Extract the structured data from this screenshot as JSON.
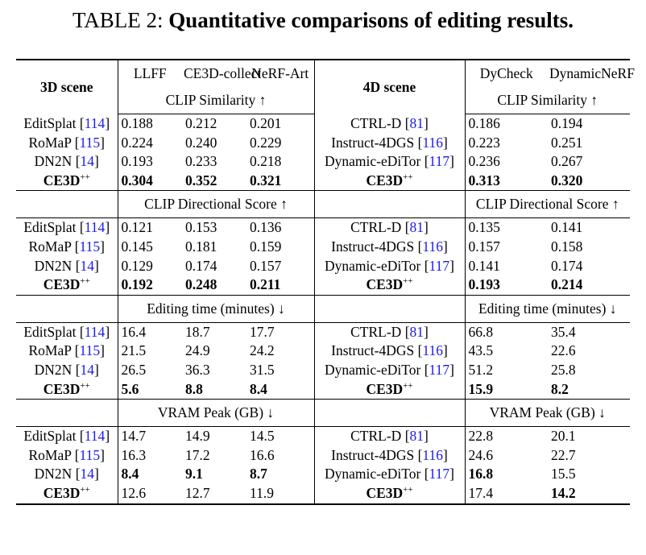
{
  "title": {
    "label": "TABLE 2:",
    "text": "Quantitative comparisons of editing results."
  },
  "header": {
    "left_scene": "3D scene",
    "left_datasets": [
      "LLFF",
      "CE3D-collect",
      "NeRF-Art"
    ],
    "right_scene": "4D scene",
    "right_datasets": [
      "DyCheck",
      "DynamicNeRF"
    ]
  },
  "sections": [
    {
      "metric": "CLIP Similarity ↑",
      "rows": [
        {
          "left_method": "EditSplat",
          "left_ref": "[114]",
          "left_values": [
            "0.188",
            "0.212",
            "0.201"
          ],
          "left_bold": [
            false,
            false,
            false
          ],
          "right_method": "CTRL-D",
          "right_ref": "[81]",
          "right_values": [
            "0.186",
            "0.194"
          ],
          "right_bold": [
            false,
            false
          ]
        },
        {
          "left_method": "RoMaP",
          "left_ref": "[115]",
          "left_values": [
            "0.224",
            "0.240",
            "0.229"
          ],
          "left_bold": [
            false,
            false,
            false
          ],
          "right_method": "Instruct-4DGS",
          "right_ref": "[116]",
          "right_values": [
            "0.223",
            "0.251"
          ],
          "right_bold": [
            false,
            false
          ]
        },
        {
          "left_method": "DN2N",
          "left_ref": "[14]",
          "left_values": [
            "0.193",
            "0.233",
            "0.218"
          ],
          "left_bold": [
            false,
            false,
            false
          ],
          "right_method": "Dynamic-eDiTor",
          "right_ref": "[117]",
          "right_values": [
            "0.236",
            "0.267"
          ],
          "right_bold": [
            false,
            false
          ]
        },
        {
          "left_method": "CE3D",
          "left_sup": "++",
          "left_values": [
            "0.304",
            "0.352",
            "0.321"
          ],
          "left_bold": [
            true,
            true,
            true
          ],
          "right_method": "CE3D",
          "right_sup": "++",
          "right_values": [
            "0.313",
            "0.320"
          ],
          "right_bold": [
            true,
            true
          ]
        }
      ]
    },
    {
      "metric": "CLIP Directional Score ↑",
      "rows": [
        {
          "left_method": "EditSplat",
          "left_ref": "[114]",
          "left_values": [
            "0.121",
            "0.153",
            "0.136"
          ],
          "left_bold": [
            false,
            false,
            false
          ],
          "right_method": "CTRL-D",
          "right_ref": "[81]",
          "right_values": [
            "0.135",
            "0.141"
          ],
          "right_bold": [
            false,
            false
          ]
        },
        {
          "left_method": "RoMaP",
          "left_ref": "[115]",
          "left_values": [
            "0.145",
            "0.181",
            "0.159"
          ],
          "left_bold": [
            false,
            false,
            false
          ],
          "right_method": "Instruct-4DGS",
          "right_ref": "[116]",
          "right_values": [
            "0.157",
            "0.158"
          ],
          "right_bold": [
            false,
            false
          ]
        },
        {
          "left_method": "DN2N",
          "left_ref": "[14]",
          "left_values": [
            "0.129",
            "0.174",
            "0.157"
          ],
          "left_bold": [
            false,
            false,
            false
          ],
          "right_method": "Dynamic-eDiTor",
          "right_ref": "[117]",
          "right_values": [
            "0.141",
            "0.174"
          ],
          "right_bold": [
            false,
            false
          ]
        },
        {
          "left_method": "CE3D",
          "left_sup": "++",
          "left_values": [
            "0.192",
            "0.248",
            "0.211"
          ],
          "left_bold": [
            true,
            true,
            true
          ],
          "right_method": "CE3D",
          "right_sup": "++",
          "right_values": [
            "0.193",
            "0.214"
          ],
          "right_bold": [
            true,
            true
          ]
        }
      ]
    },
    {
      "metric": "Editing time (minutes) ↓",
      "rows": [
        {
          "left_method": "EditSplat",
          "left_ref": "[114]",
          "left_values": [
            "16.4",
            "18.7",
            "17.7"
          ],
          "left_bold": [
            false,
            false,
            false
          ],
          "right_method": "CTRL-D",
          "right_ref": "[81]",
          "right_values": [
            "66.8",
            "35.4"
          ],
          "right_bold": [
            false,
            false
          ]
        },
        {
          "left_method": "RoMaP",
          "left_ref": "[115]",
          "left_values": [
            "21.5",
            "24.9",
            "24.2"
          ],
          "left_bold": [
            false,
            false,
            false
          ],
          "right_method": "Instruct-4DGS",
          "right_ref": "[116]",
          "right_values": [
            "43.5",
            "22.6"
          ],
          "right_bold": [
            false,
            false
          ]
        },
        {
          "left_method": "DN2N",
          "left_ref": "[14]",
          "left_values": [
            "26.5",
            "36.3",
            "31.5"
          ],
          "left_bold": [
            false,
            false,
            false
          ],
          "right_method": "Dynamic-eDiTor",
          "right_ref": "[117]",
          "right_values": [
            "51.2",
            "25.8"
          ],
          "right_bold": [
            false,
            false
          ]
        },
        {
          "left_method": "CE3D",
          "left_sup": "++",
          "left_values": [
            "5.6",
            "8.8",
            "8.4"
          ],
          "left_bold": [
            true,
            true,
            true
          ],
          "right_method": "CE3D",
          "right_sup": "++",
          "right_values": [
            "15.9",
            "8.2"
          ],
          "right_bold": [
            true,
            true
          ]
        }
      ]
    },
    {
      "metric": "VRAM Peak (GB) ↓",
      "rows": [
        {
          "left_method": "EditSplat",
          "left_ref": "[114]",
          "left_values": [
            "14.7",
            "14.9",
            "14.5"
          ],
          "left_bold": [
            false,
            false,
            false
          ],
          "right_method": "CTRL-D",
          "right_ref": "[81]",
          "right_values": [
            "22.8",
            "20.1"
          ],
          "right_bold": [
            false,
            false
          ]
        },
        {
          "left_method": "RoMaP",
          "left_ref": "[115]",
          "left_values": [
            "16.3",
            "17.2",
            "16.6"
          ],
          "left_bold": [
            false,
            false,
            false
          ],
          "right_method": "Instruct-4DGS",
          "right_ref": "[116]",
          "right_values": [
            "24.6",
            "22.7"
          ],
          "right_bold": [
            false,
            false
          ]
        },
        {
          "left_method": "DN2N",
          "left_ref": "[14]",
          "left_values": [
            "8.4",
            "9.1",
            "8.7"
          ],
          "left_bold": [
            true,
            true,
            true
          ],
          "right_method": "Dynamic-eDiTor",
          "right_ref": "[117]",
          "right_values": [
            "16.8",
            "15.5"
          ],
          "right_bold": [
            true,
            false
          ]
        },
        {
          "left_method": "CE3D",
          "left_sup": "++",
          "left_values": [
            "12.6",
            "12.7",
            "11.9"
          ],
          "left_bold": [
            false,
            false,
            false
          ],
          "right_method": "CE3D",
          "right_sup": "++",
          "right_values": [
            "17.4",
            "14.2"
          ],
          "right_bold": [
            false,
            true
          ]
        }
      ]
    }
  ]
}
